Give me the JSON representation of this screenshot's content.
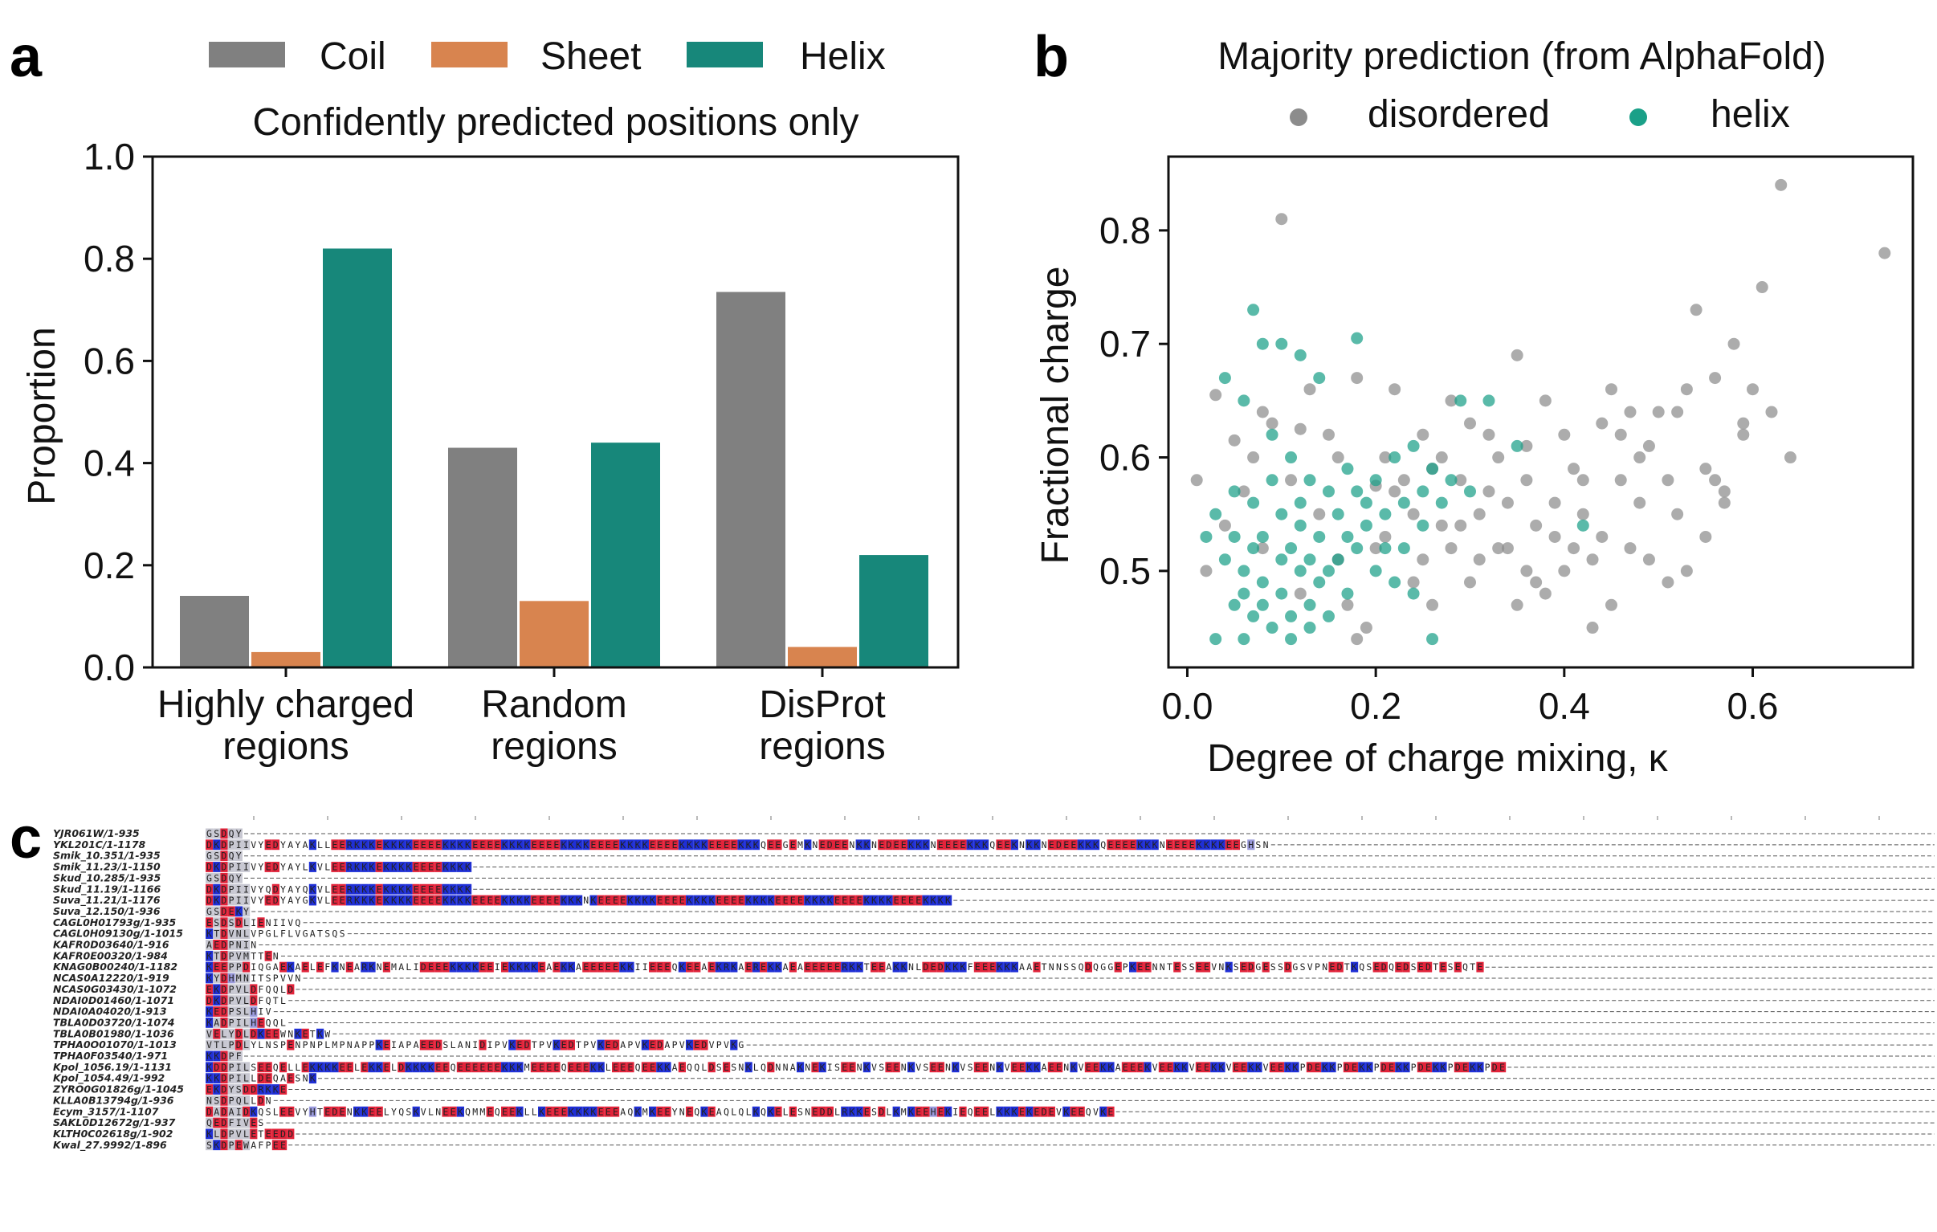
{
  "colors": {
    "coil": "#808080",
    "sheet": "#d8844f",
    "helix": "#17877a",
    "disordered": "#8c8c8c",
    "helix_dot": "#1aa088",
    "acidic": "#e2233a",
    "basic": "#1f2fd6",
    "neutral": "#c8c8d2",
    "polar": "#9a9adc"
  },
  "panel_a": {
    "letter": "a",
    "legend": [
      "Coil",
      "Sheet",
      "Helix"
    ],
    "title": "Confidently predicted positions only",
    "ylabel": "Proportion",
    "yticks": [
      "0.0",
      "0.2",
      "0.4",
      "0.6",
      "0.8",
      "1.0"
    ],
    "categories": [
      [
        "Highly charged",
        "regions"
      ],
      [
        "Random",
        "regions"
      ],
      [
        "DisProt",
        "regions"
      ]
    ]
  },
  "panel_b": {
    "letter": "b",
    "legend_title": "Majority prediction (from AlphaFold)",
    "legend": [
      "disordered",
      "helix"
    ],
    "xlabel": "Degree of charge mixing, κ",
    "ylabel": "Fractional charge",
    "xticks": [
      "0.0",
      "0.2",
      "0.4",
      "0.6"
    ],
    "yticks": [
      "0.5",
      "0.6",
      "0.7",
      "0.8"
    ]
  },
  "panel_c": {
    "letter": "c",
    "names": [
      "YJR061W/1-935",
      "YKL201C/1-1178",
      "Smik_10.351/1-935",
      "Smik_11.23/1-1150",
      "Skud_10.285/1-935",
      "Skud_11.19/1-1166",
      "Suva_11.21/1-1176",
      "Suva_12.150/1-936",
      "CAGL0H01793g/1-935",
      "CAGL0H09130g/1-1015",
      "KAFR0D03640/1-916",
      "KAFR0E00320/1-984",
      "KNAG0B00240/1-1182",
      "NCAS0A12220/1-919",
      "NCAS0G03430/1-1072",
      "NDAI0D01460/1-1071",
      "NDAI0A04020/1-913",
      "TBLA0D03720/1-1074",
      "TBLA0B01980/1-1036",
      "TPHA0O01070/1-1013",
      "TPHA0F03540/1-971",
      "Kpol_1056.19/1-1131",
      "Kpol_1054.49/1-992",
      "ZYRO0G01826g/1-1045",
      "KLLA0B13794g/1-936",
      "Ecym_3157/1-1107",
      "SAKL0D12672g/1-937",
      "KLTH0C02618g/1-902",
      "Kwal_27.9992/1-896"
    ],
    "seqs": [
      "GSDQY-",
      "DKDPIIVYEDYAYAKLLEERKKKEKKKKEEEEKKKKEEEEKKKKEEEEKKKKEEEEKKKKEEEEKKKKEEEEKKKQEEGEMKNEDEENKKNEDEEKKKNEEEEKKKQEEKNKKNEDEEKKKQEEEEKKKNEEEEKKKKEEGHSN",
      "GSDQY-",
      "DKDPIIVYEDYAYLKVLEERKKKEKKKKEEEEKKKK-EEEEKKKKEEEEKKKKEEEEKKKKEEEEKKKKEEEEKKKK",
      "GSDQY-",
      "DKDPIIVYQDYAYQKVLEERKKKEKKKKEEEEKKKK-EEEEKKKKEEEEKKKKEEEEKKKKEEEEKKKKEEEEKKKK",
      "DKDPIIVYEDYAYGKVLEERKKKEKKKKEEEEKKKKEEEEKKKKEEEEKKKNKEEEEKKKKEEEEKKKKEEEEKKKKEEEEKKKKEEEEKKKKEEEEKKKK",
      "GSDEKY-",
      "ESDSDLIENIIVQ-",
      "KTDVNLVPGLFLVGATSQS-",
      "AEDPNIN-",
      "KTDPVMTTEN-",
      "KEEPPDIQGAEKAELEFKNEARKNEMALIDEEEKKKKEEIEKKKKEAEKKAEEEEEKKIIEEEQKEEAEKRKAEREKKAEAEEEEERKKTEEAKKNLDEDKKKFEEEKKKAAETNNSSQDQGGEPKEENNTESSEEVNKSEDGESSDGSVPNEDTKQSEDQEDSEDTESEQTE",
      "KYDHMNITSPVVN-",
      "EKDPVLDFQQLD-",
      "DKDPVLDFQTL-",
      "KEDPSLHIV-",
      "KADPILHEQQL-",
      "VELYDLDKEEWNKETKW-",
      "VTLPDLYLNSPENPNPLMPNAPPKEIAPAEEDSLANIDIPVKEDTPVKEDTPVKEDAPVKEDAPVKEDVPVKG",
      "KKDPF-",
      "KDDPILSEEQELLEKKKKEELEKKELDKKKKEEQEEEEEEKKKMEEEEQEEEKKLEEEQEEKKAEQQLDSESNKLQDNNAKNEKISEENKVSEENKVSEENKVSEENKVEEKKAEENKVEEKKAEEEKVEEKKVEEKKVEEKKVEEKKPDEKKPDEKKPDEKKPDEKKPDEKKPDE",
      "KKDPILLDEQAESNK-",
      "EKDYSDDRKKE-",
      "NSDPQLLDN-",
      "DADAIDKQSLEEVYHTEDENKKEELYQSKVLNEEKQMMEQEEKLLKEEEKKKKEEEAQKMKEEYNEQKEAQLQLKQKELESNEDDLRKKESDLKMKEEHEKIEQEELKKKEKEDEVKEEQVKE",
      "QEDFIVES-",
      "KLDPVLETEEDD-",
      "SKDPEWAFPEE-"
    ]
  },
  "chart_data": [
    {
      "type": "bar",
      "categories": [
        "Highly charged regions",
        "Random regions",
        "DisProt regions"
      ],
      "series": [
        {
          "name": "Coil",
          "values": [
            0.14,
            0.43,
            0.735
          ]
        },
        {
          "name": "Sheet",
          "values": [
            0.03,
            0.13,
            0.04
          ]
        },
        {
          "name": "Helix",
          "values": [
            0.82,
            0.44,
            0.22
          ]
        }
      ],
      "title": "Confidently predicted positions only",
      "ylabel": "Proportion",
      "ylim": [
        0,
        1.0
      ],
      "legend": "top"
    },
    {
      "type": "scatter",
      "xlabel": "Degree of charge mixing, κ",
      "ylabel": "Fractional charge",
      "xlim": [
        -0.02,
        0.77
      ],
      "ylim": [
        0.415,
        0.865
      ],
      "legend": "top",
      "series": [
        {
          "name": "disordered",
          "points": [
            [
              0.03,
              0.655
            ],
            [
              0.05,
              0.615
            ],
            [
              0.07,
              0.6
            ],
            [
              0.08,
              0.64
            ],
            [
              0.1,
              0.81
            ],
            [
              0.12,
              0.625
            ],
            [
              0.13,
              0.66
            ],
            [
              0.15,
              0.62
            ],
            [
              0.16,
              0.6
            ],
            [
              0.18,
              0.67
            ],
            [
              0.2,
              0.575
            ],
            [
              0.21,
              0.6
            ],
            [
              0.22,
              0.66
            ],
            [
              0.24,
              0.55
            ],
            [
              0.25,
              0.62
            ],
            [
              0.26,
              0.59
            ],
            [
              0.27,
              0.54
            ],
            [
              0.28,
              0.65
            ],
            [
              0.29,
              0.58
            ],
            [
              0.3,
              0.63
            ],
            [
              0.31,
              0.55
            ],
            [
              0.32,
              0.57
            ],
            [
              0.33,
              0.6
            ],
            [
              0.34,
              0.52
            ],
            [
              0.35,
              0.69
            ],
            [
              0.36,
              0.58
            ],
            [
              0.37,
              0.54
            ],
            [
              0.38,
              0.65
            ],
            [
              0.39,
              0.56
            ],
            [
              0.4,
              0.62
            ],
            [
              0.41,
              0.59
            ],
            [
              0.42,
              0.55
            ],
            [
              0.43,
              0.51
            ],
            [
              0.44,
              0.63
            ],
            [
              0.45,
              0.66
            ],
            [
              0.46,
              0.58
            ],
            [
              0.47,
              0.64
            ],
            [
              0.48,
              0.56
            ],
            [
              0.49,
              0.61
            ],
            [
              0.5,
              0.64
            ],
            [
              0.51,
              0.58
            ],
            [
              0.52,
              0.55
            ],
            [
              0.53,
              0.66
            ],
            [
              0.54,
              0.73
            ],
            [
              0.55,
              0.59
            ],
            [
              0.56,
              0.67
            ],
            [
              0.57,
              0.56
            ],
            [
              0.58,
              0.7
            ],
            [
              0.59,
              0.63
            ],
            [
              0.6,
              0.66
            ],
            [
              0.61,
              0.75
            ],
            [
              0.62,
              0.64
            ],
            [
              0.63,
              0.84
            ],
            [
              0.64,
              0.6
            ],
            [
              0.74,
              0.78
            ],
            [
              0.24,
              0.49
            ],
            [
              0.26,
              0.47
            ],
            [
              0.3,
              0.49
            ],
            [
              0.33,
              0.52
            ],
            [
              0.36,
              0.5
            ],
            [
              0.38,
              0.48
            ],
            [
              0.4,
              0.5
            ],
            [
              0.43,
              0.45
            ],
            [
              0.45,
              0.47
            ],
            [
              0.51,
              0.49
            ],
            [
              0.53,
              0.5
            ],
            [
              0.19,
              0.45
            ],
            [
              0.17,
              0.47
            ],
            [
              0.2,
              0.52
            ],
            [
              0.22,
              0.57
            ],
            [
              0.28,
              0.52
            ],
            [
              0.31,
              0.51
            ],
            [
              0.35,
              0.47
            ],
            [
              0.39,
              0.53
            ],
            [
              0.41,
              0.52
            ],
            [
              0.44,
              0.53
            ],
            [
              0.47,
              0.52
            ],
            [
              0.49,
              0.51
            ],
            [
              0.55,
              0.53
            ],
            [
              0.57,
              0.57
            ],
            [
              0.59,
              0.62
            ],
            [
              0.02,
              0.5
            ],
            [
              0.01,
              0.58
            ],
            [
              0.04,
              0.54
            ],
            [
              0.06,
              0.57
            ],
            [
              0.09,
              0.63
            ],
            [
              0.11,
              0.58
            ],
            [
              0.14,
              0.55
            ],
            [
              0.18,
              0.44
            ],
            [
              0.23,
              0.58
            ],
            [
              0.27,
              0.6
            ],
            [
              0.32,
              0.62
            ],
            [
              0.34,
              0.56
            ],
            [
              0.36,
              0.61
            ],
            [
              0.42,
              0.58
            ],
            [
              0.37,
              0.49
            ],
            [
              0.25,
              0.51
            ],
            [
              0.29,
              0.54
            ],
            [
              0.21,
              0.53
            ],
            [
              0.16,
              0.51
            ],
            [
              0.12,
              0.48
            ],
            [
              0.08,
              0.52
            ],
            [
              0.46,
              0.62
            ],
            [
              0.48,
              0.6
            ],
            [
              0.52,
              0.64
            ],
            [
              0.56,
              0.58
            ]
          ]
        },
        {
          "name": "helix",
          "points": [
            [
              0.04,
              0.67
            ],
            [
              0.07,
              0.73
            ],
            [
              0.08,
              0.7
            ],
            [
              0.1,
              0.7
            ],
            [
              0.12,
              0.69
            ],
            [
              0.14,
              0.67
            ],
            [
              0.18,
              0.705
            ],
            [
              0.06,
              0.65
            ],
            [
              0.09,
              0.62
            ],
            [
              0.11,
              0.6
            ],
            [
              0.13,
              0.58
            ],
            [
              0.05,
              0.57
            ],
            [
              0.03,
              0.55
            ],
            [
              0.07,
              0.56
            ],
            [
              0.1,
              0.55
            ],
            [
              0.12,
              0.54
            ],
            [
              0.15,
              0.57
            ],
            [
              0.17,
              0.53
            ],
            [
              0.19,
              0.56
            ],
            [
              0.21,
              0.55
            ],
            [
              0.23,
              0.52
            ],
            [
              0.25,
              0.54
            ],
            [
              0.27,
              0.56
            ],
            [
              0.29,
              0.65
            ],
            [
              0.32,
              0.65
            ],
            [
              0.02,
              0.53
            ],
            [
              0.04,
              0.51
            ],
            [
              0.06,
              0.5
            ],
            [
              0.08,
              0.49
            ],
            [
              0.1,
              0.48
            ],
            [
              0.12,
              0.5
            ],
            [
              0.14,
              0.49
            ],
            [
              0.16,
              0.51
            ],
            [
              0.18,
              0.52
            ],
            [
              0.2,
              0.5
            ],
            [
              0.05,
              0.47
            ],
            [
              0.07,
              0.46
            ],
            [
              0.09,
              0.45
            ],
            [
              0.11,
              0.44
            ],
            [
              0.13,
              0.47
            ],
            [
              0.15,
              0.46
            ],
            [
              0.17,
              0.48
            ],
            [
              0.22,
              0.49
            ],
            [
              0.24,
              0.48
            ],
            [
              0.26,
              0.44
            ],
            [
              0.03,
              0.44
            ],
            [
              0.06,
              0.44
            ],
            [
              0.08,
              0.53
            ],
            [
              0.11,
              0.52
            ],
            [
              0.14,
              0.53
            ],
            [
              0.16,
              0.55
            ],
            [
              0.18,
              0.57
            ],
            [
              0.2,
              0.58
            ],
            [
              0.22,
              0.6
            ],
            [
              0.24,
              0.61
            ],
            [
              0.26,
              0.59
            ],
            [
              0.28,
              0.58
            ],
            [
              0.09,
              0.58
            ],
            [
              0.07,
              0.52
            ],
            [
              0.12,
              0.56
            ],
            [
              0.13,
              0.51
            ],
            [
              0.15,
              0.5
            ],
            [
              0.1,
              0.51
            ],
            [
              0.05,
              0.53
            ],
            [
              0.17,
              0.59
            ],
            [
              0.19,
              0.54
            ],
            [
              0.21,
              0.52
            ],
            [
              0.23,
              0.56
            ],
            [
              0.25,
              0.57
            ],
            [
              0.3,
              0.57
            ],
            [
              0.35,
              0.61
            ],
            [
              0.42,
              0.54
            ],
            [
              0.08,
              0.47
            ],
            [
              0.11,
              0.46
            ],
            [
              0.06,
              0.48
            ],
            [
              0.13,
              0.45
            ]
          ]
        }
      ]
    }
  ]
}
